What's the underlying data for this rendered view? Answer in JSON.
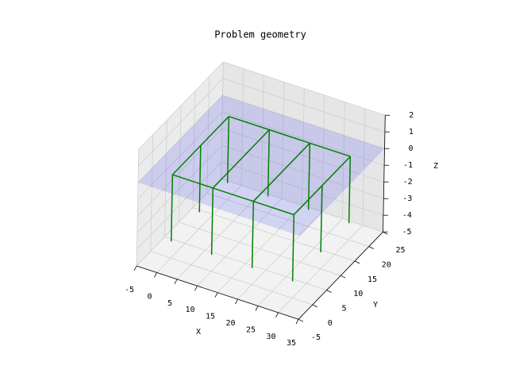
{
  "chart_data": {
    "type": "line3d",
    "title": "Problem geometry",
    "xlabel": "X",
    "ylabel": "Y",
    "zlabel": "Z",
    "xlim": [
      -5,
      35
    ],
    "ylim": [
      -5,
      25
    ],
    "zlim": [
      -5,
      2
    ],
    "xticks": [
      -5,
      0,
      5,
      10,
      15,
      20,
      25,
      30,
      35
    ],
    "yticks": [
      -5,
      0,
      5,
      10,
      15,
      20,
      25
    ],
    "zticks": [
      -5,
      -4,
      -3,
      -2,
      -1,
      0,
      1,
      2
    ],
    "grid": true,
    "plane": {
      "x": [
        -5,
        35
      ],
      "y": [
        -5,
        25
      ],
      "z": 0,
      "color": "#0000ff",
      "alpha": 0.13
    },
    "series": [
      {
        "color": "#008000",
        "x": [
          0,
          10,
          20,
          30,
          null,
          0,
          10,
          20,
          30,
          null,
          0,
          0,
          0,
          null,
          10,
          10,
          null,
          20,
          20,
          null,
          30,
          30,
          30
        ],
        "y": [
          0,
          0,
          0,
          0,
          null,
          20,
          20,
          20,
          20,
          null,
          0,
          10,
          20,
          null,
          0,
          20,
          null,
          0,
          20,
          null,
          0,
          10,
          20
        ],
        "z": [
          0,
          0,
          0,
          0,
          null,
          0,
          0,
          0,
          0,
          null,
          0,
          0,
          0,
          null,
          0,
          0,
          null,
          0,
          0,
          null,
          0,
          0,
          0
        ]
      },
      {
        "color": "#008000",
        "x": [
          0,
          0,
          null,
          10,
          10,
          null,
          20,
          20,
          null,
          30,
          30,
          null,
          0,
          0,
          null,
          10,
          10,
          null,
          20,
          20,
          null,
          30,
          30,
          null,
          0,
          0,
          null,
          30,
          30
        ],
        "y": [
          0,
          0,
          null,
          0,
          0,
          null,
          0,
          0,
          null,
          0,
          0,
          null,
          20,
          20,
          null,
          20,
          20,
          null,
          20,
          20,
          null,
          20,
          20,
          null,
          10,
          10,
          null,
          10,
          10
        ],
        "z": [
          0,
          -4,
          null,
          0,
          -4,
          null,
          0,
          -4,
          null,
          0,
          -4,
          null,
          0,
          -4,
          null,
          0,
          -4,
          null,
          0,
          -4,
          null,
          0,
          -4,
          null,
          0,
          -4,
          null,
          0,
          -4
        ]
      }
    ]
  }
}
